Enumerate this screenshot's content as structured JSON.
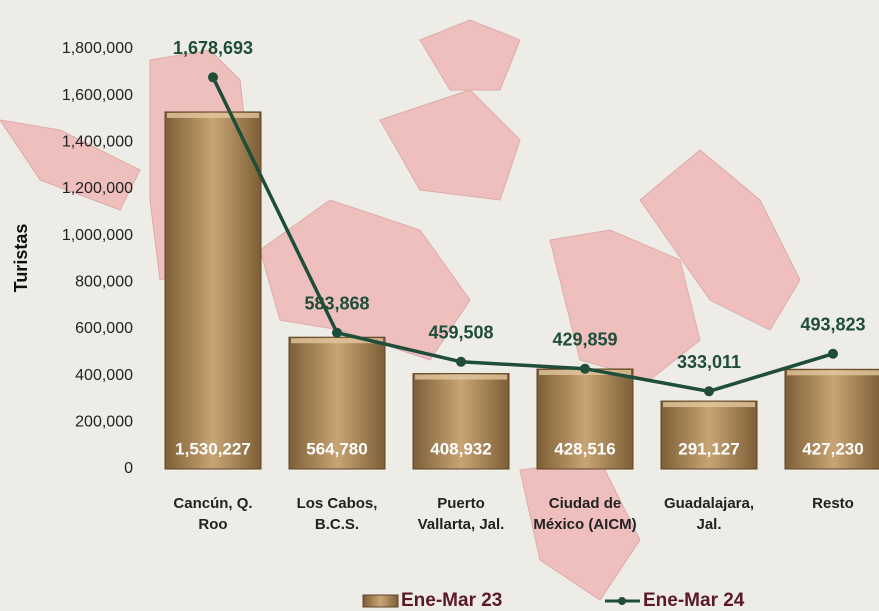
{
  "chart_data": {
    "type": "bar",
    "y_label": "Turistas",
    "categories": [
      "Cancún, Q. Roo",
      "Los Cabos, B.C.S.",
      "Puerto Vallarta, Jal.",
      "Ciudad de México (AICM)",
      "Guadalajara, Jal.",
      "Resto"
    ],
    "series": [
      {
        "name": "Ene-Mar 23",
        "type": "bar",
        "color": "#a8865a",
        "values": [
          1530227,
          564780,
          408932,
          428516,
          291127,
          427230
        ],
        "value_labels": [
          "1,530,227",
          "564,780",
          "408,932",
          "428,516",
          "291,127",
          "427,230"
        ]
      },
      {
        "name": "Ene-Mar 24",
        "type": "line",
        "color": "#1e4d3a",
        "values": [
          1678693,
          583868,
          459508,
          429859,
          333011,
          493823
        ],
        "value_labels": [
          "1,678,693",
          "583,868",
          "459,508",
          "429,859",
          "333,011",
          "493,823"
        ]
      }
    ],
    "ylim": [
      0,
      1800000
    ],
    "yticks": [
      0,
      {
        "value": 200000,
        "label": "200,000"
      },
      {
        "value": 400000,
        "label": "400,000"
      },
      {
        "value": 600000,
        "label": "600,000"
      },
      {
        "value": 800000,
        "label": "800,000"
      },
      {
        "value": 1000000,
        "label": "1,000,000"
      },
      {
        "value": 1200000,
        "label": "1,200,000"
      },
      {
        "value": 1400000,
        "label": "1,400,000"
      },
      {
        "value": 1600000,
        "label": "1,600,000"
      },
      {
        "value": 1800000,
        "label": "1,800,000"
      }
    ],
    "grid": false,
    "legend": "bottom"
  }
}
